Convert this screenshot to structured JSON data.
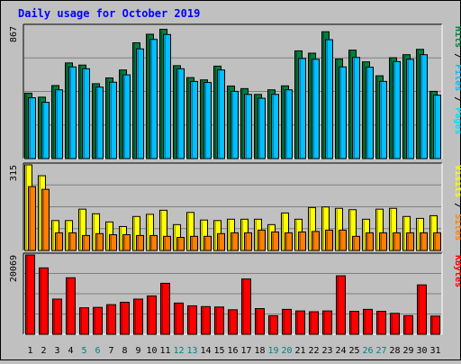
{
  "chart_data": {
    "type": "bar",
    "title": "Daily usage for October 2019",
    "categories": [
      "1",
      "2",
      "3",
      "4",
      "5",
      "6",
      "7",
      "8",
      "9",
      "10",
      "11",
      "12",
      "13",
      "14",
      "15",
      "16",
      "17",
      "18",
      "19",
      "20",
      "21",
      "22",
      "23",
      "24",
      "25",
      "26",
      "27",
      "28",
      "29",
      "30",
      "31"
    ],
    "weekend_categories": [
      "5",
      "6",
      "12",
      "13",
      "19",
      "20",
      "26",
      "27"
    ],
    "panels": [
      {
        "id": "hits-files-pages",
        "ymax_label": "867",
        "ylim": [
          0,
          867
        ],
        "series": [
          {
            "name": "Hits",
            "color": "#008040",
            "values": [
              428,
              402,
              478,
              626,
              612,
              490,
              528,
              580,
              758,
              814,
              846,
              608,
              530,
              515,
              605,
              475,
              458,
              420,
              450,
              476,
              705,
              690,
              830,
              652,
              710,
              633,
              542,
              660,
              680,
              715,
              440
            ]
          },
          {
            "name": "Files",
            "color": "#00c0ff",
            "values": [
              398,
              368,
              450,
              600,
              588,
              468,
              500,
              548,
              718,
              780,
              812,
              588,
              505,
              498,
              580,
              440,
              420,
              395,
              420,
              450,
              655,
              650,
              778,
              600,
              662,
              598,
              505,
              635,
              650,
              680,
              415
            ]
          },
          {
            "name": "Pages",
            "color": "#00e0ff",
            "values": []
          }
        ],
        "legend": [
          {
            "text": "Pages",
            "color": "#00e0ff"
          },
          {
            "text": " / ",
            "color": "#000000"
          },
          {
            "text": "Files",
            "color": "#00c0ff"
          },
          {
            "text": " / ",
            "color": "#000000"
          },
          {
            "text": "Hits",
            "color": "#008040"
          }
        ]
      },
      {
        "id": "visits-sites",
        "ymax_label": "315",
        "ylim": [
          0,
          315
        ],
        "series": [
          {
            "name": "Visits",
            "color": "#ffff00",
            "values": [
              315,
              275,
              110,
              110,
              152,
              135,
              105,
              88,
              125,
              133,
              148,
              95,
              140,
              112,
              110,
              115,
              115,
              115,
              95,
              138,
              115,
              158,
              160,
              155,
              150,
              115,
              152,
              155,
              125,
              118,
              128
            ]
          },
          {
            "name": "Sites",
            "color": "#ff8000",
            "values": [
              235,
              225,
              65,
              65,
              55,
              62,
              58,
              58,
              55,
              55,
              52,
              48,
              52,
              52,
              62,
              65,
              65,
              75,
              68,
              65,
              68,
              70,
              75,
              75,
              52,
              65,
              65,
              65,
              65,
              65,
              65
            ]
          }
        ],
        "legend": [
          {
            "text": "Sites",
            "color": "#ff8000"
          },
          {
            "text": " / ",
            "color": "#000000"
          },
          {
            "text": "Visits",
            "color": "#ffff00"
          }
        ]
      },
      {
        "id": "kbytes",
        "ymax_label": "20069",
        "ylim": [
          0,
          20069
        ],
        "series": [
          {
            "name": "KBytes",
            "color": "#ff0000",
            "values": [
              20069,
              16800,
              8900,
              14300,
              6700,
              6800,
              7500,
              8100,
              8900,
              9700,
              12900,
              7900,
              7200,
              7000,
              6900,
              6200,
              14000,
              6500,
              4700,
              6300,
              5900,
              5700,
              5900,
              14800,
              5800,
              6300,
              5800,
              5300,
              4700,
              12500,
              4600
            ]
          }
        ],
        "legend": [
          {
            "text": "KBytes",
            "color": "#ff0000"
          }
        ]
      }
    ]
  }
}
